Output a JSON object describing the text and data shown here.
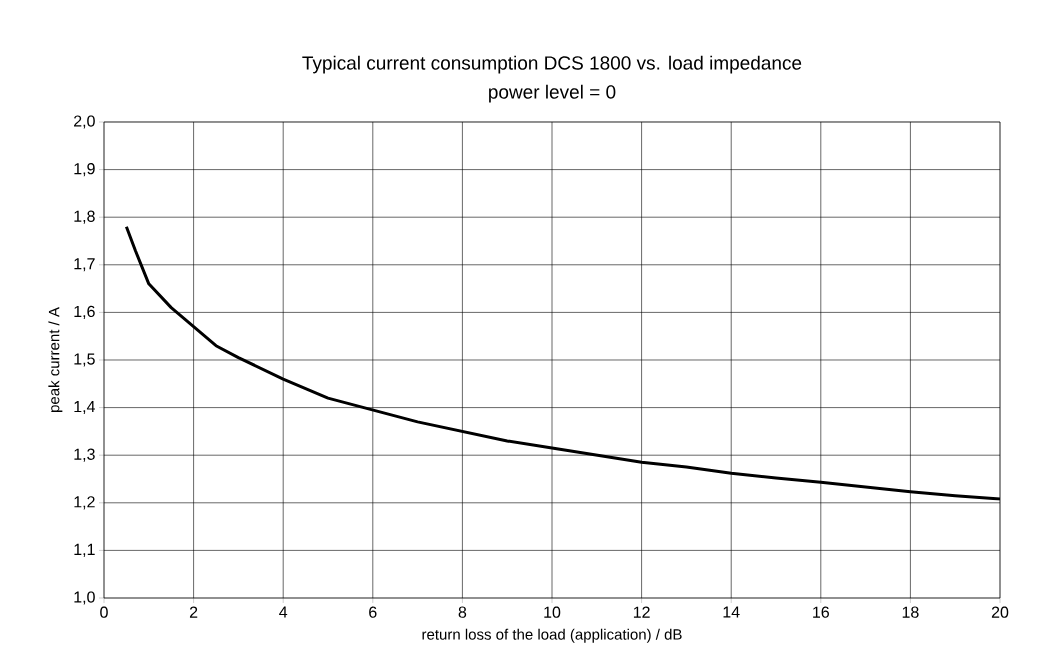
{
  "chart_data": {
    "type": "line",
    "title": "Typical current consumption DCS 1800 vs. load impedance",
    "subtitle": "power level = 0",
    "xlabel": "return loss of the load (application) / dB",
    "ylabel": "peak current / A",
    "x": [
      0.5,
      0.7,
      1,
      1.5,
      2,
      2.5,
      3,
      4,
      5,
      6,
      7,
      8,
      9,
      10,
      11,
      12,
      13,
      14,
      15,
      16,
      17,
      18,
      19,
      20
    ],
    "values": [
      1.78,
      1.73,
      1.66,
      1.61,
      1.57,
      1.53,
      1.505,
      1.46,
      1.42,
      1.395,
      1.37,
      1.35,
      1.33,
      1.315,
      1.3,
      1.285,
      1.275,
      1.262,
      1.252,
      1.243,
      1.233,
      1.223,
      1.215,
      1.208
    ],
    "color": "#000000",
    "xlim": [
      0,
      20
    ],
    "ylim": [
      1.0,
      2.0
    ],
    "xticks": [
      0,
      2,
      4,
      6,
      8,
      10,
      12,
      14,
      16,
      18,
      20
    ],
    "yticks": [
      {
        "value": 1.0,
        "label": "1,0"
      },
      {
        "value": 1.1,
        "label": "1,1"
      },
      {
        "value": 1.2,
        "label": "1,2"
      },
      {
        "value": 1.3,
        "label": "1,3"
      },
      {
        "value": 1.4,
        "label": "1,4"
      },
      {
        "value": 1.5,
        "label": "1,5"
      },
      {
        "value": 1.6,
        "label": "1,6"
      },
      {
        "value": 1.7,
        "label": "1,7"
      },
      {
        "value": 1.8,
        "label": "1,8"
      },
      {
        "value": 1.9,
        "label": "1,9"
      },
      {
        "value": 2.0,
        "label": "2,0"
      }
    ],
    "grid": true,
    "marker": "none",
    "line_style": "solid"
  }
}
